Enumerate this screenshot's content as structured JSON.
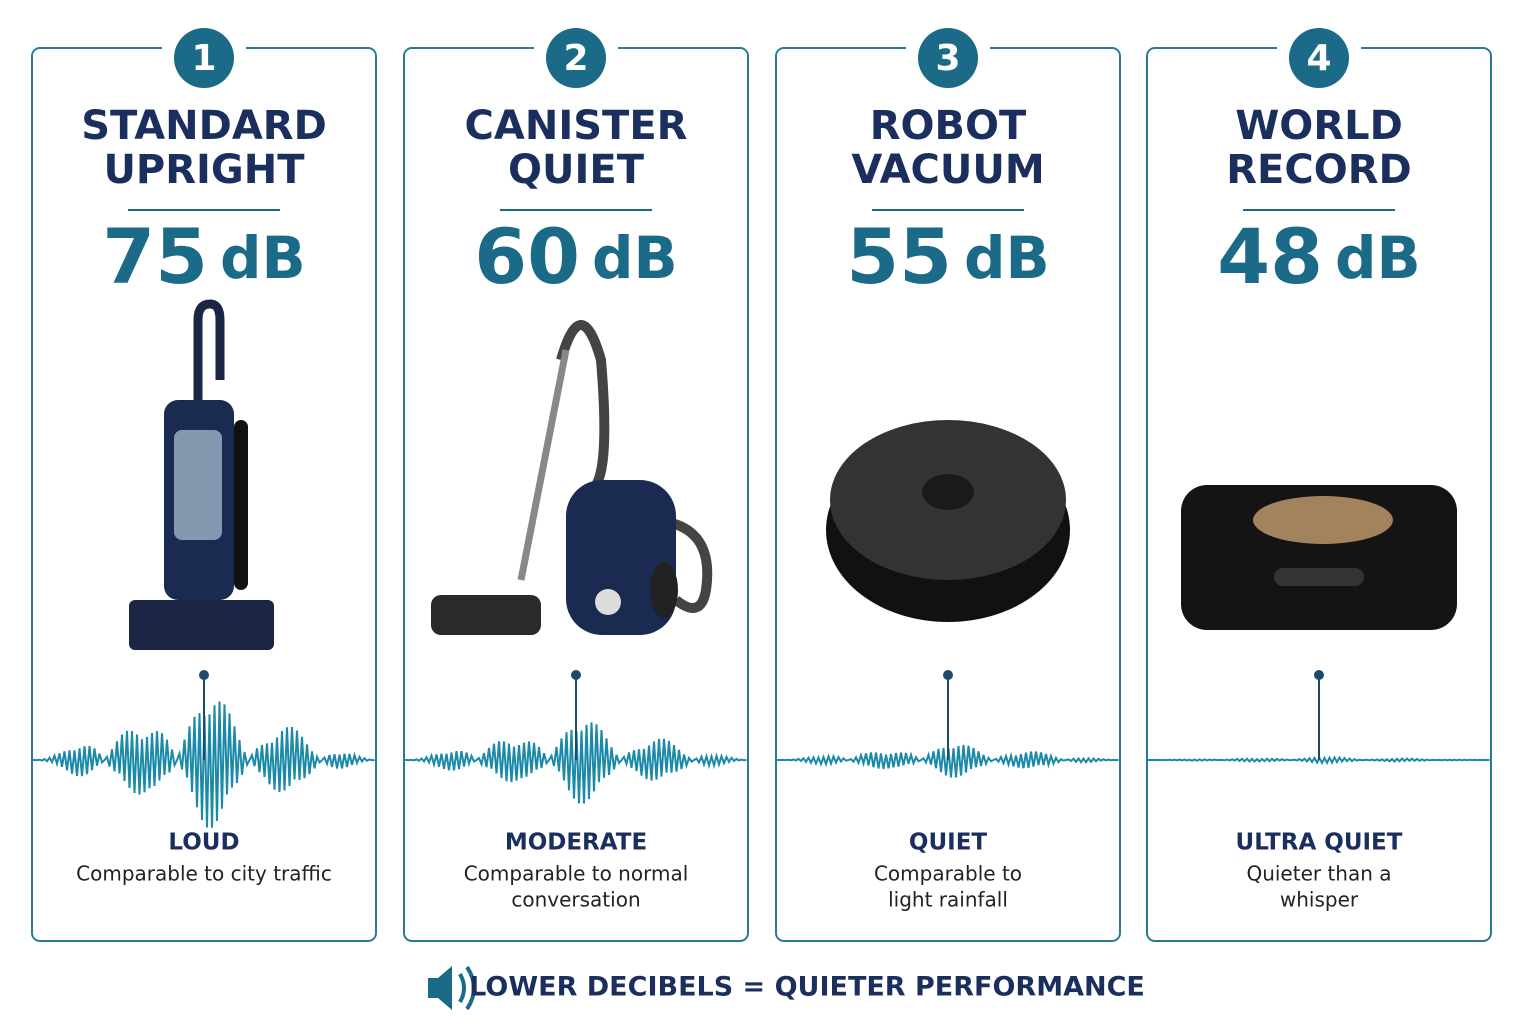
{
  "cards": [
    {
      "number": 1,
      "title": [
        "STANDARD",
        "UPRIGHT"
      ],
      "db": 75,
      "unit": "dB",
      "level": "LOUD",
      "description": [
        "Comparable to city traffic"
      ]
    },
    {
      "number": 2,
      "title": [
        "CANISTER",
        "QUIET"
      ],
      "db": 60,
      "unit": "dB",
      "level": "MODERATE",
      "description": [
        "Comparable to normal",
        "conversation"
      ]
    },
    {
      "number": 3,
      "title": [
        "ROBOT",
        "VACUUM"
      ],
      "db": 55,
      "unit": "dB",
      "level": "QUIET",
      "description": [
        "Comparable to",
        "light rainfall"
      ]
    },
    {
      "number": 4,
      "title": [
        "WORLD",
        "RECORD"
      ],
      "db": 48,
      "unit": "dB",
      "level": "ULTRA QUIET",
      "description": [
        "Quieter than a",
        "whisper"
      ]
    }
  ],
  "footer": "LOWER DECIBELS = QUIETER PERFORMANCE"
}
